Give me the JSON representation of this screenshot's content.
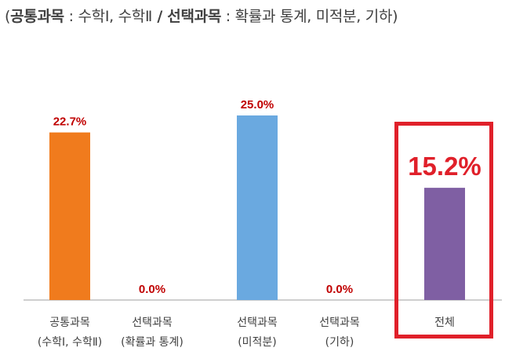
{
  "chart_data": {
    "type": "bar",
    "title": "",
    "subtitle": {
      "open": "(",
      "common_label": "공통과목",
      "common_sep": " : ",
      "common_subjects": "수학Ⅰ, 수학Ⅱ",
      "divider": " / ",
      "elective_label": "선택과목",
      "elective_sep": " : ",
      "elective_subjects": "확률과 통계, 미적분, 기하",
      "close": ")"
    },
    "categories": [
      [
        "공통과목",
        "(수학Ⅰ, 수학Ⅱ)"
      ],
      [
        "선택과목",
        "(확률과 통계)"
      ],
      [
        "선택과목",
        "(미적분)"
      ],
      [
        "선택과목",
        "(기하)"
      ],
      [
        "전체"
      ]
    ],
    "values": [
      22.7,
      0.0,
      25.0,
      0.0,
      15.2
    ],
    "value_labels": [
      "22.7%",
      "0.0%",
      "25.0%",
      "0.0%",
      "15.2%"
    ],
    "colors": [
      "#f07b1d",
      "#6fb0e4",
      "#6aa9e0",
      "#6fb0e4",
      "#7f5fa3"
    ],
    "label_color": "#c00000",
    "highlight_color": "#e0202a",
    "highlighted_index": 4,
    "xlabel": "",
    "ylabel": "",
    "ylim": [
      0,
      30
    ],
    "grid": false,
    "legend": "none"
  }
}
